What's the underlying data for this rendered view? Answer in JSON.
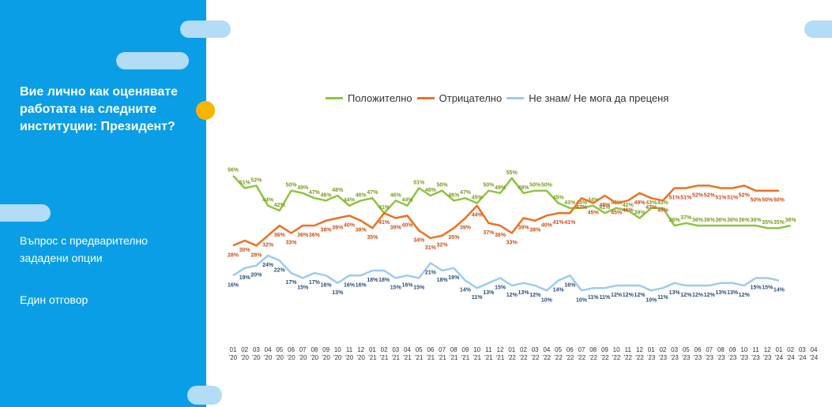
{
  "sidebar": {
    "question": "Вие лично как оценявате работата на следните институции: Президент?",
    "note1": "Въпрос с предварително зададени опции",
    "note2": "Един отговор"
  },
  "colors": {
    "sidebar_bg": "#0a9ee6",
    "accent_dot": "#f7b500",
    "positive": "#8cc63f",
    "negative": "#f07020",
    "dont_know": "#9ccbf0"
  },
  "chart_data": {
    "type": "line",
    "x": [
      "01 '20",
      "02 '20",
      "03 '20",
      "04 '20",
      "05 '20",
      "06 '20",
      "07 '20",
      "08 '20",
      "09 '20",
      "10 '20",
      "11 '20",
      "12 '20",
      "01 '21",
      "02 '21",
      "03 '21",
      "04 '21",
      "05 '21",
      "06 '21",
      "07 '21",
      "08 '21",
      "09 '21",
      "10 '21",
      "11 '21",
      "12 '21",
      "01 '22",
      "02 '22",
      "03 '22",
      "04 '22",
      "05 '22",
      "06 '22",
      "07 '22",
      "08 '22",
      "09 '22",
      "10 '22",
      "11 '22",
      "12 '22",
      "01 '23",
      "02 '23",
      "03 '23",
      "05 '23",
      "06 '23",
      "07 '23",
      "08 '23",
      "09 '23",
      "10 '23",
      "11 '23",
      "12 '23",
      "01 '24",
      "02 '24",
      "03 '24",
      "04 '24"
    ],
    "ylim": [
      0,
      60
    ],
    "grid": false,
    "legend_position": "top",
    "series": [
      {
        "name": "Положително",
        "color": "#8cc63f",
        "values": [
          56,
          51,
          52,
          44,
          42,
          50,
          49,
          47,
          46,
          48,
          44,
          46,
          47,
          41,
          46,
          44,
          51,
          48,
          50,
          46,
          47,
          45,
          50,
          49,
          55,
          49,
          50,
          50,
          45,
          43,
          43,
          44,
          41,
          43,
          42,
          39,
          43,
          43,
          36,
          37,
          36,
          36,
          36,
          36,
          36,
          36,
          35,
          35,
          36,
          null,
          null
        ]
      },
      {
        "name": "Отрицателно",
        "color": "#f07020",
        "values": [
          28,
          30,
          28,
          32,
          36,
          33,
          36,
          36,
          38,
          39,
          40,
          38,
          35,
          41,
          39,
          40,
          34,
          31,
          32,
          35,
          39,
          44,
          37,
          36,
          33,
          39,
          38,
          40,
          41,
          41,
          47,
          45,
          48,
          45,
          46,
          49,
          47,
          46,
          51,
          51,
          52,
          52,
          51,
          51,
          52,
          50,
          50,
          50,
          null,
          null,
          null
        ]
      },
      {
        "name": "Не знам/ Не мога да преценя",
        "color": "#9ccbf0",
        "values": [
          16,
          19,
          20,
          24,
          22,
          17,
          15,
          17,
          16,
          13,
          16,
          16,
          18,
          18,
          15,
          16,
          15,
          21,
          18,
          19,
          14,
          11,
          13,
          15,
          12,
          13,
          12,
          10,
          14,
          16,
          10,
          11,
          11,
          12,
          12,
          12,
          10,
          11,
          13,
          12,
          12,
          12,
          13,
          13,
          12,
          15,
          15,
          14,
          null,
          null,
          null
        ]
      }
    ],
    "data_labels": {
      "positive": [
        "56%",
        "51%",
        "52%",
        "44%",
        "42%",
        "50%",
        "49%",
        "47%",
        "46%",
        "48%",
        "44%",
        "46%",
        "47%",
        "41%",
        "46%",
        "44%",
        "51%",
        "48%",
        "50%",
        "46%",
        "47%",
        "45%",
        "50%",
        "49%",
        "55%",
        "49%",
        "50%",
        "50%",
        "45%",
        "43%",
        "43%",
        "44%",
        "41%",
        "43%",
        "42%",
        "39%",
        "43%",
        "43%",
        "36%",
        "37%",
        "36%",
        "36%",
        "36%",
        "36%",
        "36%",
        "36%",
        "35%",
        "35%",
        "36%"
      ],
      "negative": [
        "28%",
        "30%",
        "28%",
        "32%",
        "36%",
        "33%",
        "36%",
        "36%",
        "38%",
        "39%",
        "40%",
        "38%",
        "35%",
        "41%",
        "39%",
        "40%",
        "34%",
        "31%",
        "32%",
        "35%",
        "39%",
        "44%",
        "37%",
        "36%",
        "33%",
        "39%",
        "38%",
        "40%",
        "41%",
        "41%",
        "47%",
        "45%",
        "48%",
        "45%",
        "46%",
        "49%",
        "47%",
        "46%",
        "51%",
        "51%",
        "52%",
        "52%",
        "51%",
        "51%",
        "52%",
        "50%",
        "50%",
        "50%"
      ],
      "dont_know": [
        "16%",
        "19%",
        "20%",
        "24%",
        "22%",
        "17%",
        "15%",
        "17%",
        "16%",
        "13%",
        "16%",
        "16%",
        "18%",
        "18%",
        "15%",
        "16%",
        "15%",
        "21%",
        "18%",
        "19%",
        "14%",
        "11%",
        "13%",
        "15%",
        "12%",
        "13%",
        "12%",
        "10%",
        "14%",
        "16%",
        "10%",
        "11%",
        "11%",
        "12%",
        "12%",
        "12%",
        "10%",
        "11%",
        "13%",
        "12%",
        "12%",
        "12%",
        "13%",
        "13%",
        "12%",
        "15%",
        "15%",
        "14%"
      ]
    }
  }
}
